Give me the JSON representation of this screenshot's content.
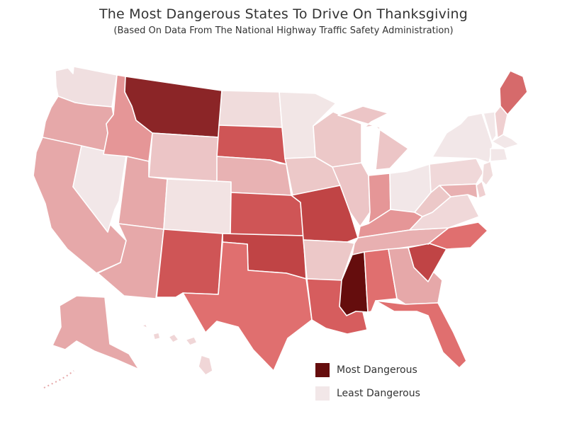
{
  "title": "The Most Dangerous States To Drive On Thanksgiving",
  "subtitle": "(Based On Data From The National Highway Traffic Safety Administration)",
  "legend": {
    "most_label": "Most Dangerous",
    "least_label": "Least Dangerous",
    "most_color": "#650d0d",
    "least_color": "#f2e7e8"
  },
  "states": [
    {
      "code": "WA",
      "color": "#f0dfe0"
    },
    {
      "code": "OR",
      "color": "#e6a8a9"
    },
    {
      "code": "CA",
      "color": "#e6a8a9"
    },
    {
      "code": "NV",
      "color": "#f2e7e8"
    },
    {
      "code": "ID",
      "color": "#e59697"
    },
    {
      "code": "MT",
      "color": "#8b2527"
    },
    {
      "code": "WY",
      "color": "#ecc5c6"
    },
    {
      "code": "UT",
      "color": "#e6a8a9"
    },
    {
      "code": "AZ",
      "color": "#e6a8a9"
    },
    {
      "code": "CO",
      "color": "#f2e3e3"
    },
    {
      "code": "NM",
      "color": "#cf5556"
    },
    {
      "code": "ND",
      "color": "#f0dcdc"
    },
    {
      "code": "SD",
      "color": "#cf5556"
    },
    {
      "code": "NE",
      "color": "#e8b2b3"
    },
    {
      "code": "KS",
      "color": "#cf5556"
    },
    {
      "code": "OK",
      "color": "#c04445"
    },
    {
      "code": "TX",
      "color": "#e06f6f"
    },
    {
      "code": "MN",
      "color": "#f2e6e6"
    },
    {
      "code": "IA",
      "color": "#ecc8c8"
    },
    {
      "code": "MO",
      "color": "#c04445"
    },
    {
      "code": "AR",
      "color": "#ecc8c8"
    },
    {
      "code": "LA",
      "color": "#d65d5e"
    },
    {
      "code": "WI",
      "color": "#ecc8c8"
    },
    {
      "code": "IL",
      "color": "#ecc5c6"
    },
    {
      "code": "MI",
      "color": "#ecc5c6"
    },
    {
      "code": "IN",
      "color": "#e59697"
    },
    {
      "code": "OH",
      "color": "#f2e7e8"
    },
    {
      "code": "KY",
      "color": "#e59697"
    },
    {
      "code": "TN",
      "color": "#e8b0b1"
    },
    {
      "code": "MS",
      "color": "#650d0d"
    },
    {
      "code": "AL",
      "color": "#e06f6f"
    },
    {
      "code": "GA",
      "color": "#e6a8a9"
    },
    {
      "code": "FL",
      "color": "#e06f6f"
    },
    {
      "code": "SC",
      "color": "#c04445"
    },
    {
      "code": "NC",
      "color": "#e06f6f"
    },
    {
      "code": "VA",
      "color": "#f0d8d9"
    },
    {
      "code": "WV",
      "color": "#ecc8c8"
    },
    {
      "code": "PA",
      "color": "#f0d8d9"
    },
    {
      "code": "NY",
      "color": "#f2e7e8"
    },
    {
      "code": "ME",
      "color": "#d66a6b"
    },
    {
      "code": "NH",
      "color": "#efcfd0"
    },
    {
      "code": "VT",
      "color": "#f2e7e8"
    },
    {
      "code": "MA",
      "color": "#f2e7e8"
    },
    {
      "code": "CT",
      "color": "#f2e7e8"
    },
    {
      "code": "NJ",
      "color": "#f0dcdc"
    },
    {
      "code": "DE",
      "color": "#efcfd0"
    },
    {
      "code": "MD",
      "color": "#e8b0b1"
    },
    {
      "code": "AK",
      "color": "#e6a8a9"
    },
    {
      "code": "HI",
      "color": "#f0d6d7"
    }
  ]
}
